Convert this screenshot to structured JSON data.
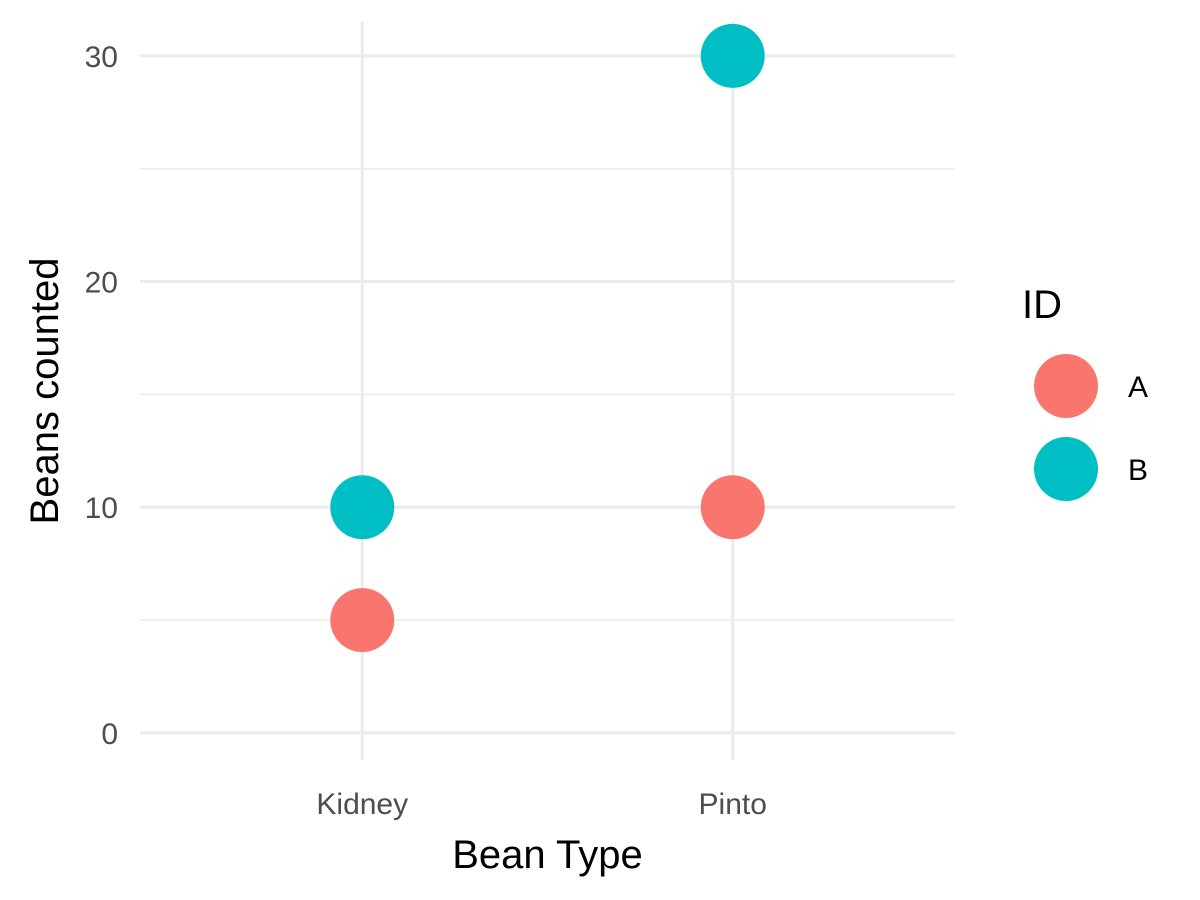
{
  "chart_data": {
    "type": "scatter",
    "xlabel": "Bean Type",
    "ylabel": "Beans counted",
    "categories": [
      "Kidney",
      "Pinto"
    ],
    "ylim": [
      -1.2,
      31.5
    ],
    "y_ticks": [
      0,
      10,
      20,
      30
    ],
    "y_minor_ticks": [
      5,
      15,
      25
    ],
    "grid": true,
    "legend": {
      "title": "ID",
      "position": "right"
    },
    "series": [
      {
        "name": "A",
        "color": "#F8766D",
        "values": [
          5,
          10
        ]
      },
      {
        "name": "B",
        "color": "#00BFC4",
        "values": [
          10,
          30
        ]
      }
    ]
  }
}
